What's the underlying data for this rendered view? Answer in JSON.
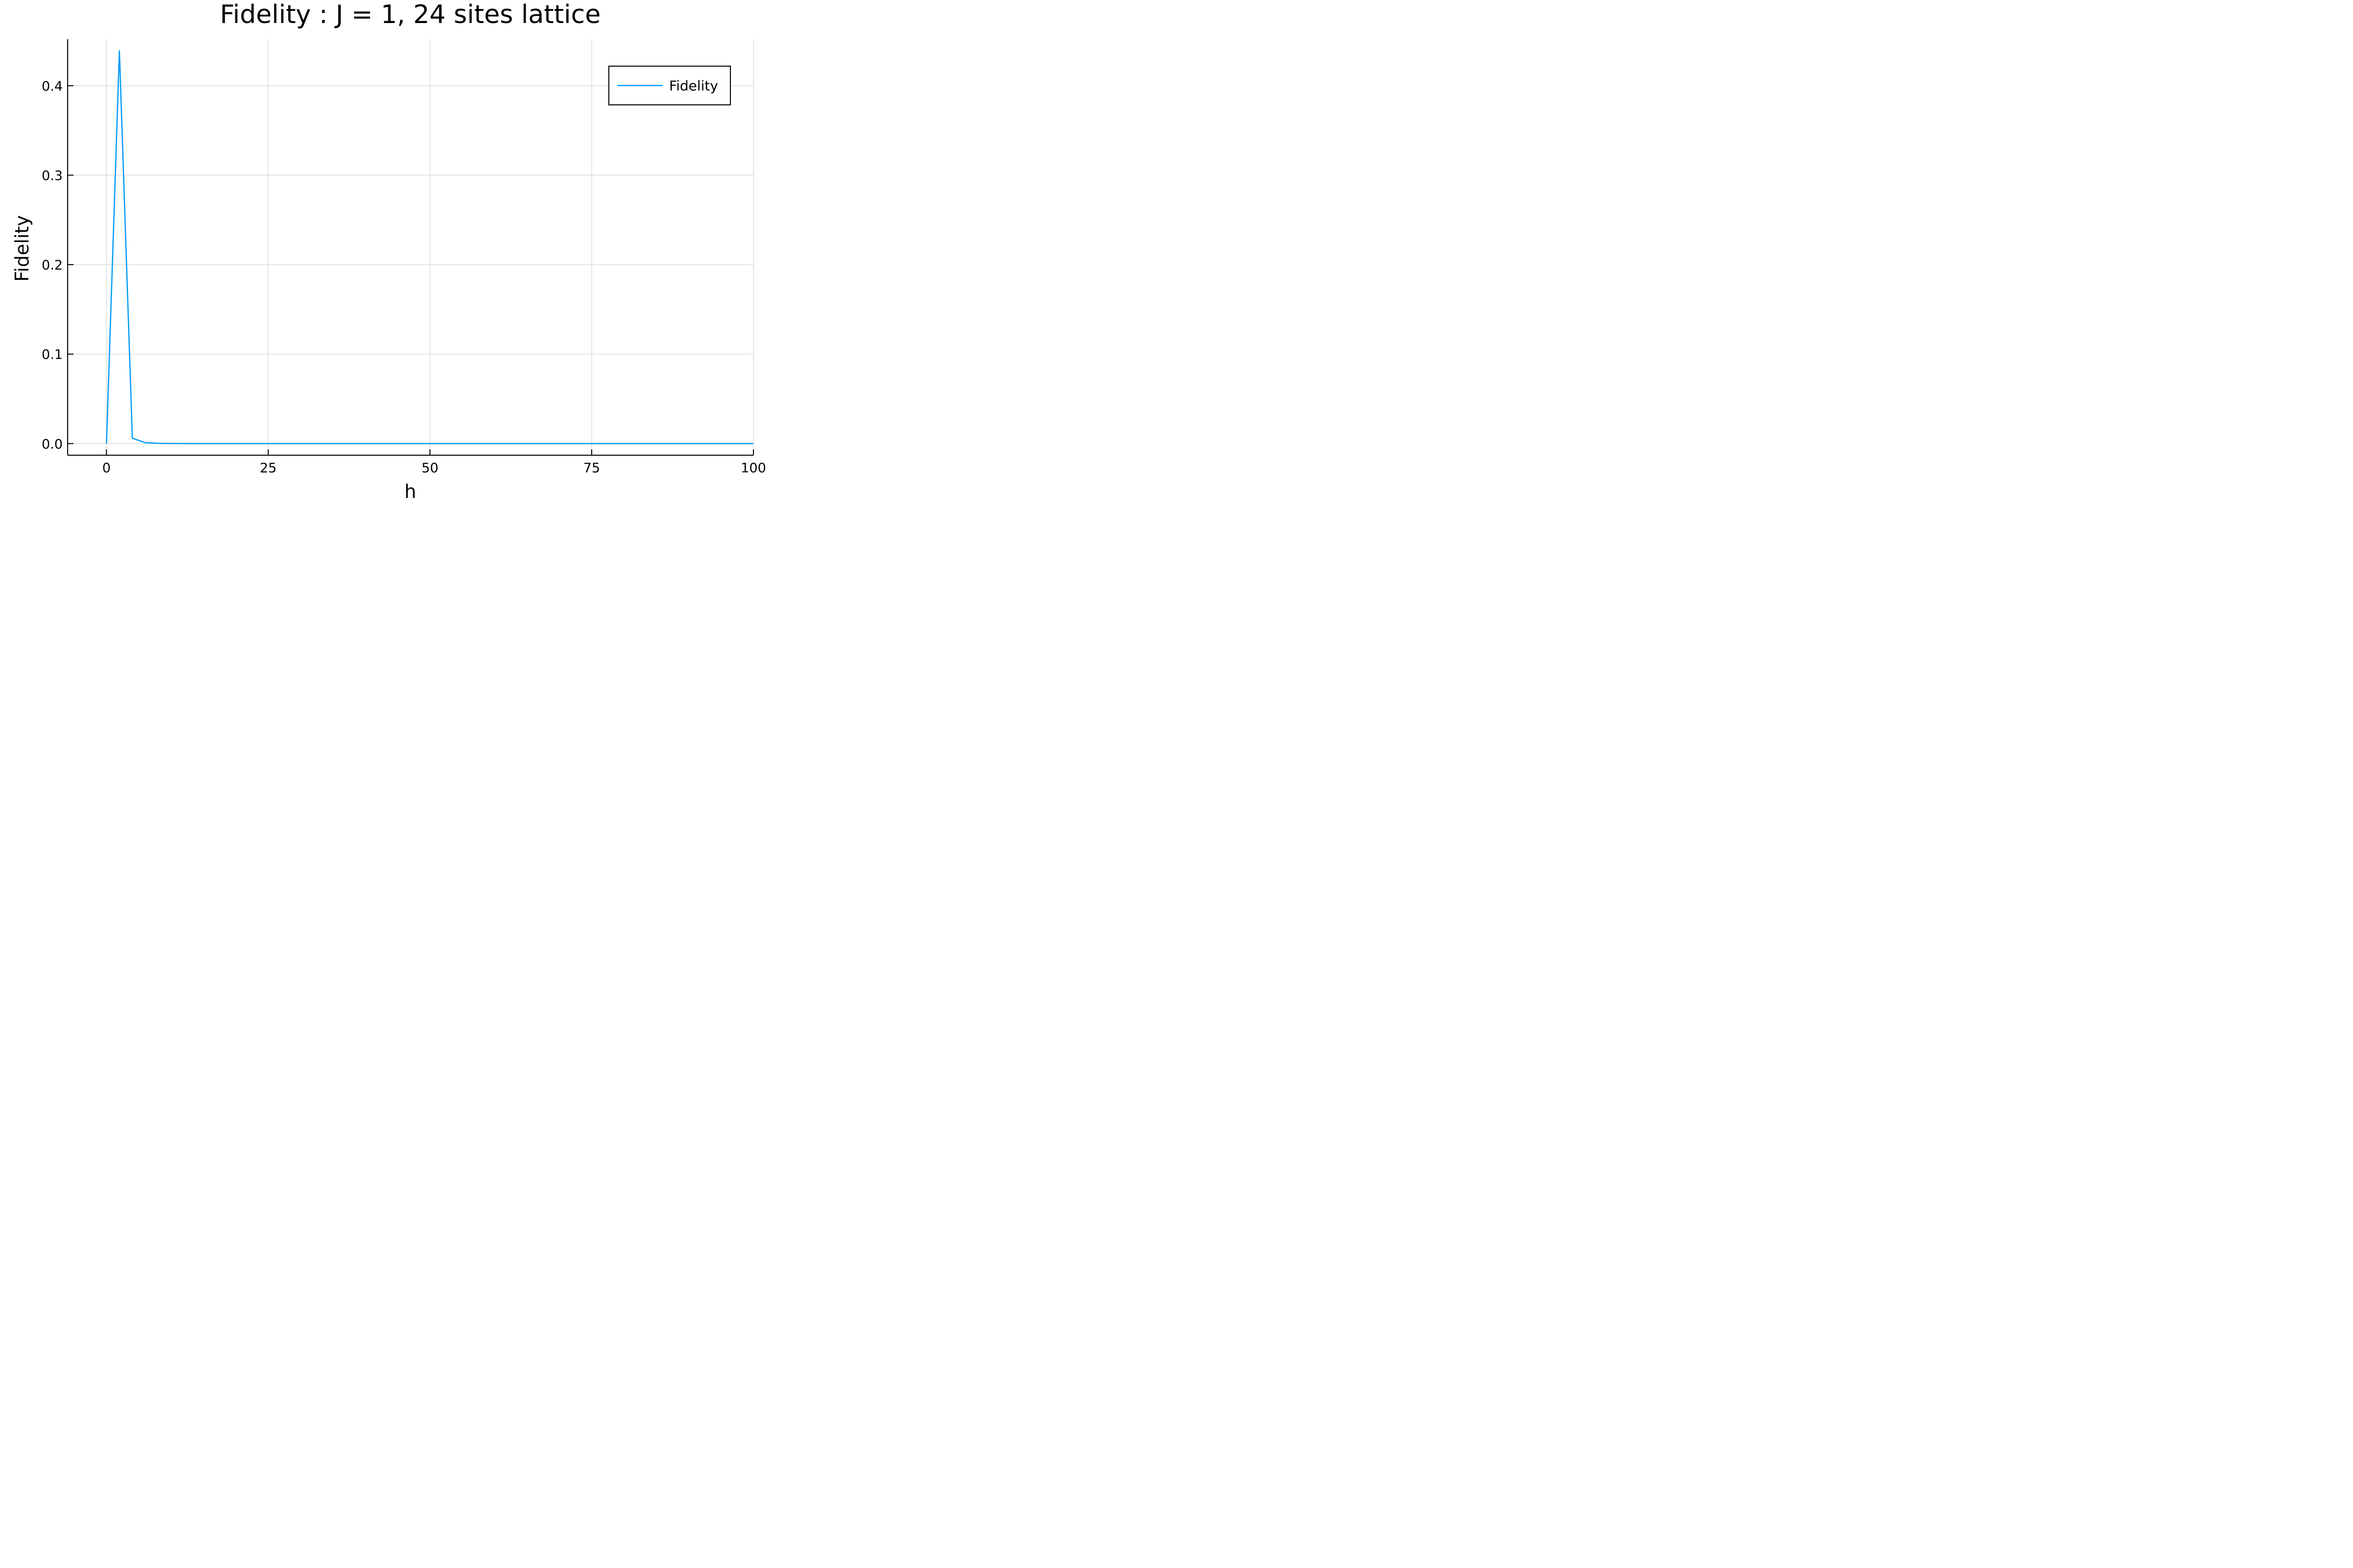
{
  "chart_data": {
    "type": "line",
    "title": "Fidelity : J = 1, 24 sites lattice",
    "xlabel": "h",
    "ylabel": "Fidelity",
    "xlim": [
      -6,
      100
    ],
    "ylim": [
      -0.013,
      0.452
    ],
    "xticks": [
      0,
      25,
      50,
      75,
      100
    ],
    "xtick_labels": [
      "0",
      "25",
      "50",
      "75",
      "100"
    ],
    "yticks": [
      0,
      0.1,
      0.2,
      0.3,
      0.4
    ],
    "ytick_labels": [
      "0.0",
      "0.1",
      "0.2",
      "0.3",
      "0.4"
    ],
    "grid": true,
    "legend_position": "top-right",
    "series": [
      {
        "name": "Fidelity",
        "color": "#009AFA",
        "x": [
          0,
          2,
          4,
          6,
          8,
          10,
          12,
          14,
          16,
          18,
          20,
          25,
          30,
          35,
          40,
          45,
          50,
          55,
          60,
          65,
          70,
          75,
          80,
          85,
          90,
          95,
          100
        ],
        "y": [
          0.0,
          0.439,
          0.006,
          0.001,
          0.0003,
          0.0001,
          5e-05,
          0.0,
          0.0,
          0.0,
          0.0,
          0.0,
          0.0,
          0.0,
          0.0,
          0.0,
          0.0,
          0.0,
          0.0,
          0.0,
          0.0,
          0.0,
          0.0,
          0.0,
          0.0,
          0.0,
          0.0
        ]
      }
    ]
  }
}
